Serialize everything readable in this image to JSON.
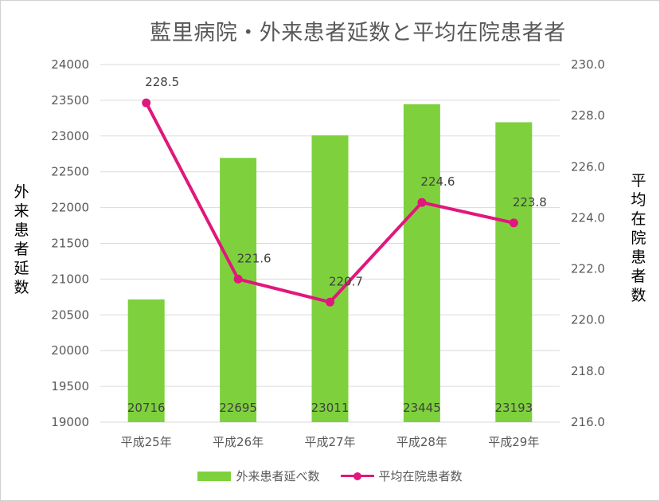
{
  "title": "藍里病院・外来患者延数と平均在院患者者",
  "y_left_label": "外来患者延数",
  "y_right_label": "平均在院患者数",
  "legend": {
    "bar": "外来患者延べ数",
    "line": "平均在院患者数"
  },
  "colors": {
    "bar": "#7ed13d",
    "line": "#e0177c",
    "grid": "#d9d9d9"
  },
  "chart_data": {
    "type": "bar",
    "categories": [
      "平成25年",
      "平成26年",
      "平成27年",
      "平成28年",
      "平成29年"
    ],
    "series": [
      {
        "name": "外来患者延べ数",
        "type": "bar",
        "axis": "left",
        "values": [
          20716,
          22695,
          23011,
          23445,
          23193
        ]
      },
      {
        "name": "平均在院患者数",
        "type": "line",
        "axis": "right",
        "values": [
          228.5,
          221.6,
          220.7,
          224.6,
          223.8
        ]
      }
    ],
    "title": "藍里病院・外来患者延数と平均在院患者者",
    "ylabel": "外来患者延数",
    "y2label": "平均在院患者数",
    "ylim": [
      19000,
      24000
    ],
    "y2lim": [
      216.0,
      230.0
    ],
    "yticks": [
      "19000",
      "19500",
      "20000",
      "20500",
      "21000",
      "21500",
      "22000",
      "22500",
      "23000",
      "23500",
      "24000"
    ],
    "y2ticks": [
      "216.0",
      "218.0",
      "220.0",
      "222.0",
      "224.0",
      "226.0",
      "228.0",
      "230.0"
    ],
    "bar_labels": [
      "20716",
      "22695",
      "23011",
      "23445",
      "23193"
    ],
    "line_labels": [
      "228.5",
      "221.6",
      "220.7",
      "224.6",
      "223.8"
    ],
    "grid": true,
    "legend_position": "bottom"
  }
}
